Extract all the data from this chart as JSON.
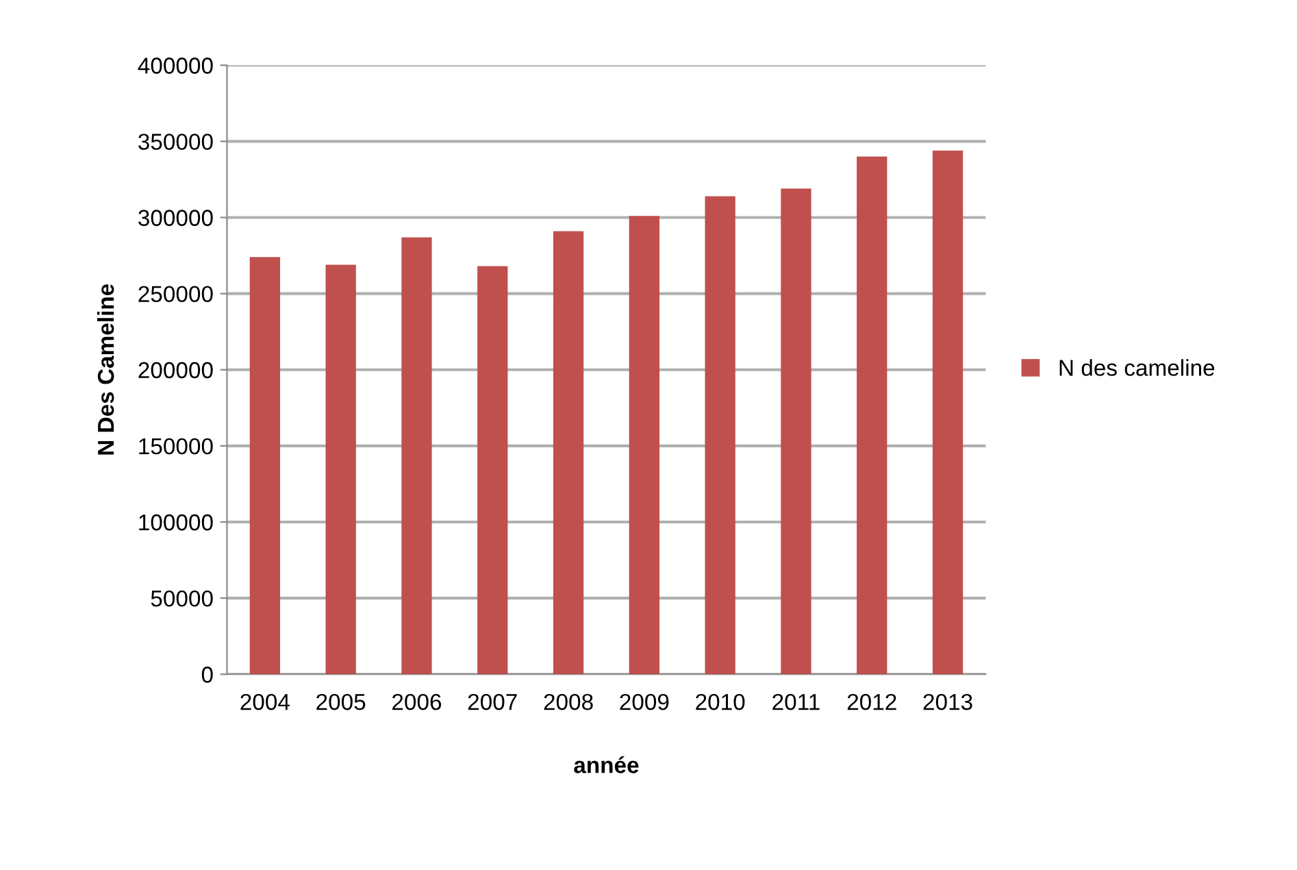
{
  "chart_data": {
    "type": "bar",
    "xlabel": "année",
    "ylabel": "N Des Cameline",
    "categories": [
      "2004",
      "2005",
      "2006",
      "2007",
      "2008",
      "2009",
      "2010",
      "2011",
      "2012",
      "2013"
    ],
    "series": [
      {
        "name": "N des cameline",
        "color": "#c0504d",
        "values": [
          274000,
          269000,
          287000,
          268000,
          291000,
          301000,
          314000,
          319000,
          340000,
          344000
        ]
      }
    ],
    "ylim": [
      0,
      400000
    ],
    "yticks": [
      0,
      50000,
      100000,
      150000,
      200000,
      250000,
      300000,
      350000,
      400000
    ],
    "grid": "y",
    "legend": "right"
  }
}
